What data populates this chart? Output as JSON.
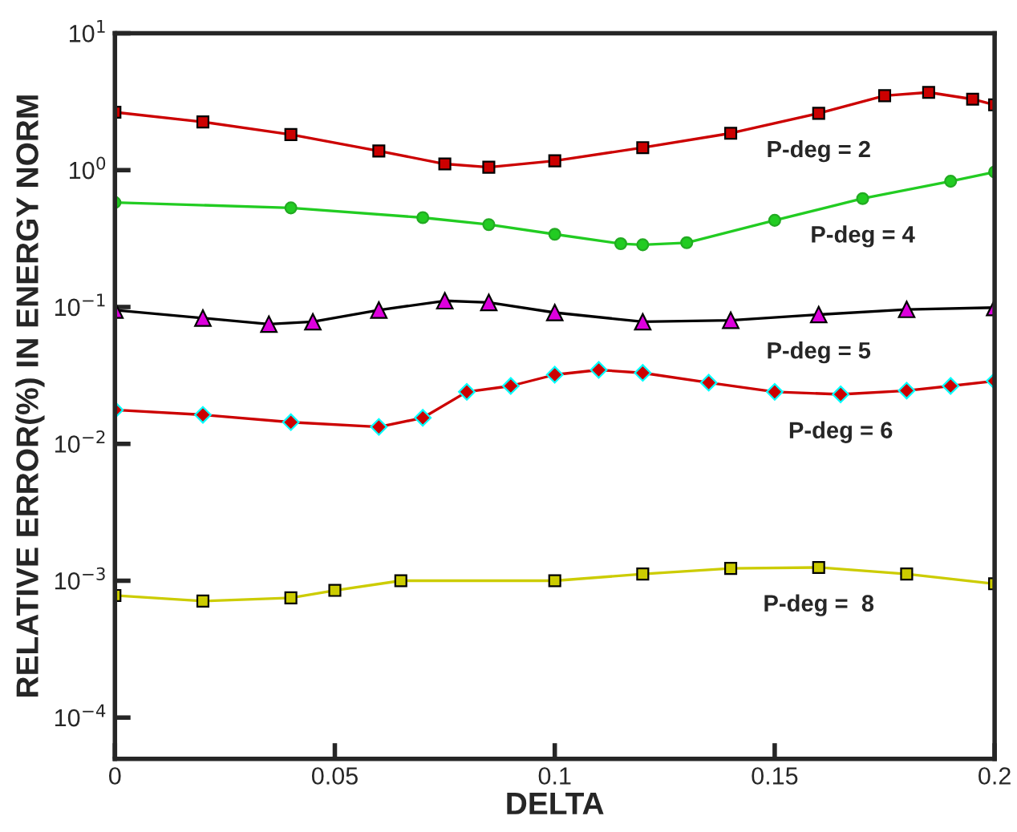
{
  "chart_data": {
    "type": "line",
    "xlabel": "DELTA",
    "ylabel": "RELATIVE ERROR(%) IN ENERGY NORM",
    "log": "y",
    "grid": false,
    "legend": false,
    "xlim": [
      0,
      0.2
    ],
    "xticks": [
      0,
      0.05,
      0.1,
      0.15,
      0.2
    ],
    "ylim": [
      5e-05,
      10
    ],
    "yticks": [
      {
        "value": 0.0001,
        "label": "10$^{−4}$"
      },
      {
        "value": 0.001,
        "label": "10$^{−3}$"
      },
      {
        "value": 0.01,
        "label": "10$^{−2}$"
      },
      {
        "value": 0.1,
        "label": "10$^{−1}$"
      },
      {
        "value": 1,
        "label": "10$^{0}$"
      },
      {
        "value": 10,
        "label": "10$^{1}$"
      }
    ],
    "series": [
      {
        "name": "P-deg = 2",
        "color": "#cc0000",
        "marker": "square",
        "x": [
          0,
          0.02,
          0.04,
          0.06,
          0.075,
          0.085,
          0.1,
          0.12,
          0.14,
          0.16,
          0.175,
          0.185,
          0.195,
          0.2
        ],
        "values": [
          2.65,
          2.25,
          1.82,
          1.38,
          1.11,
          1.05,
          1.17,
          1.46,
          1.86,
          2.6,
          3.5,
          3.7,
          3.3,
          3.0
        ]
      },
      {
        "name": "P-deg = 4",
        "color": "#22cc22",
        "marker": "circle",
        "x": [
          0,
          0.04,
          0.07,
          0.085,
          0.1,
          0.115,
          0.12,
          0.13,
          0.15,
          0.17,
          0.19,
          0.2
        ],
        "values": [
          0.58,
          0.53,
          0.45,
          0.4,
          0.34,
          0.29,
          0.285,
          0.295,
          0.43,
          0.62,
          0.83,
          0.97
        ]
      },
      {
        "name": "P-deg = 5",
        "color": "#dd00dd",
        "marker": "triangle",
        "x": [
          0,
          0.02,
          0.035,
          0.045,
          0.06,
          0.075,
          0.085,
          0.1,
          0.12,
          0.14,
          0.16,
          0.18,
          0.2
        ],
        "values": [
          0.095,
          0.083,
          0.075,
          0.078,
          0.095,
          0.111,
          0.108,
          0.091,
          0.078,
          0.08,
          0.088,
          0.096,
          0.099
        ]
      },
      {
        "name": "P-deg = 6",
        "color": "#cc0000",
        "marker": "diamond",
        "x": [
          0,
          0.02,
          0.04,
          0.06,
          0.07,
          0.08,
          0.09,
          0.1,
          0.11,
          0.12,
          0.135,
          0.15,
          0.165,
          0.18,
          0.19,
          0.2
        ],
        "values": [
          0.0177,
          0.0163,
          0.0144,
          0.0133,
          0.0155,
          0.024,
          0.0265,
          0.032,
          0.0347,
          0.033,
          0.028,
          0.024,
          0.023,
          0.0245,
          0.0265,
          0.0288
        ]
      },
      {
        "name": "P-deg =  8",
        "color": "#cccc00",
        "marker": "square",
        "x": [
          0,
          0.02,
          0.04,
          0.05,
          0.065,
          0.1,
          0.12,
          0.14,
          0.16,
          0.18,
          0.2
        ],
        "values": [
          0.00078,
          0.00071,
          0.00075,
          0.00085,
          0.001,
          0.001,
          0.00112,
          0.00123,
          0.00125,
          0.00112,
          0.00095
        ]
      }
    ]
  }
}
